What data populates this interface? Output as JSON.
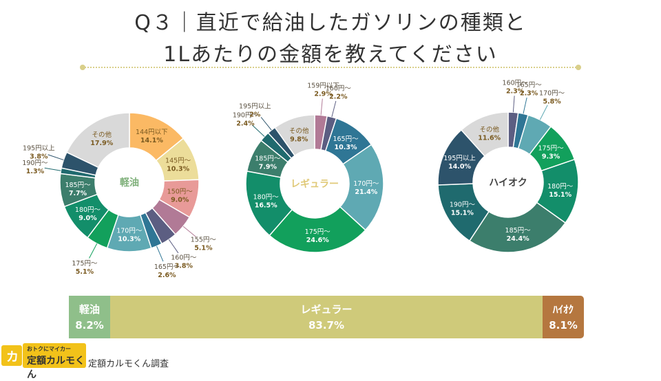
{
  "title": {
    "line1": "Q３｜直近で給油したガソリンの種類と",
    "line2": "1Lあたりの金額を教えてください"
  },
  "chart_data": [
    {
      "type": "pie",
      "center_label": "軽油",
      "center_color": "#7fb07a",
      "slices": [
        {
          "label": "144円以下",
          "value": 14.1,
          "text": "14.1%",
          "color": "#fbb964"
        },
        {
          "label": "145円～",
          "value": 10.3,
          "text": "10.3%",
          "color": "#ecdd9a"
        },
        {
          "label": "150円～",
          "value": 9.0,
          "text": "9.0%",
          "color": "#e89a98"
        },
        {
          "label": "155円～",
          "value": 5.1,
          "text": "5.1%",
          "color": "#b17a96"
        },
        {
          "label": "160円～",
          "value": 3.8,
          "text": "3.8%",
          "color": "#5c5e82"
        },
        {
          "label": "165円～",
          "value": 2.6,
          "text": "2.6%",
          "color": "#2f7695"
        },
        {
          "label": "170円～",
          "value": 10.3,
          "text": "10.3%",
          "color": "#5fa9b3"
        },
        {
          "label": "175円～",
          "value": 5.1,
          "text": "5.1%",
          "color": "#12a05c"
        },
        {
          "label": "180円～",
          "value": 9.0,
          "text": "9.0%",
          "color": "#138e6a"
        },
        {
          "label": "185円～",
          "value": 7.7,
          "text": "7.7%",
          "color": "#3c7e6c"
        },
        {
          "label": "190円～",
          "value": 1.3,
          "text": "1.3%",
          "color": "#1f6a6e"
        },
        {
          "label": "195円以上",
          "value": 3.8,
          "text": "3.8%",
          "color": "#2d536b"
        },
        {
          "label": "その他",
          "value": 17.9,
          "text": "17.9%",
          "color": "#d9d9d9"
        }
      ]
    },
    {
      "type": "pie",
      "center_label": "レギュラー",
      "center_color": "#e0c978",
      "slices": [
        {
          "label": "159円以下",
          "value": 2.9,
          "text": "2.9%",
          "color": "#b17a96"
        },
        {
          "label": "160円～",
          "value": 2.2,
          "text": "2.2%",
          "color": "#5c5e82"
        },
        {
          "label": "165円～",
          "value": 10.3,
          "text": "10.3%",
          "color": "#2f7695"
        },
        {
          "label": "170円～",
          "value": 21.4,
          "text": "21.4%",
          "color": "#5fa9b3"
        },
        {
          "label": "175円～",
          "value": 24.6,
          "text": "24.6%",
          "color": "#12a05c"
        },
        {
          "label": "180円～",
          "value": 16.5,
          "text": "16.5%",
          "color": "#138e6a"
        },
        {
          "label": "185円～",
          "value": 7.9,
          "text": "7.9%",
          "color": "#3c7e6c"
        },
        {
          "label": "190円～",
          "value": 2.4,
          "text": "2.4%",
          "color": "#1f6a6e"
        },
        {
          "label": "195円以上",
          "value": 2.0,
          "text": "2%",
          "color": "#2d536b"
        },
        {
          "label": "その他",
          "value": 9.8,
          "text": "9.8%",
          "color": "#d9d9d9"
        }
      ]
    },
    {
      "type": "pie",
      "center_label": "ハイオク",
      "center_color": "#444444",
      "slices": [
        {
          "label": "160円～",
          "value": 2.3,
          "text": "2.3%",
          "color": "#5c5e82"
        },
        {
          "label": "165円～",
          "value": 2.3,
          "text": "2.3%",
          "color": "#2f7695"
        },
        {
          "label": "170円～",
          "value": 5.8,
          "text": "5.8%",
          "color": "#5fa9b3"
        },
        {
          "label": "175円～",
          "value": 9.3,
          "text": "9.3%",
          "color": "#12a05c"
        },
        {
          "label": "180円～",
          "value": 15.1,
          "text": "15.1%",
          "color": "#138e6a"
        },
        {
          "label": "185円～",
          "value": 24.4,
          "text": "24.4%",
          "color": "#3c7e6c"
        },
        {
          "label": "190円～",
          "value": 15.1,
          "text": "15.1%",
          "color": "#1f6a6e"
        },
        {
          "label": "195円以上",
          "value": 14.0,
          "text": "14.0%",
          "color": "#2d536b"
        },
        {
          "label": "その他",
          "value": 11.6,
          "text": "11.6%",
          "color": "#d9d9d9"
        }
      ]
    },
    {
      "type": "bar",
      "orientation": "horizontal-stacked",
      "categories": [
        "軽油",
        "レギュラー",
        "ハイオク"
      ],
      "values": [
        8.2,
        83.7,
        8.1
      ],
      "texts": [
        "8.2%",
        "83.7%",
        "8.1%"
      ],
      "label_texts": [
        "軽油",
        "レギュラー",
        "ﾊｲｵｸ"
      ],
      "colors": [
        "#8fbf8a",
        "#cfca7a",
        "#b5773f"
      ]
    }
  ],
  "footer": {
    "logo_mark": "カ",
    "logo_line1": "おトクにマイカー",
    "logo_line2": "定額カルモくん",
    "source": "定額カルモくん調査"
  }
}
